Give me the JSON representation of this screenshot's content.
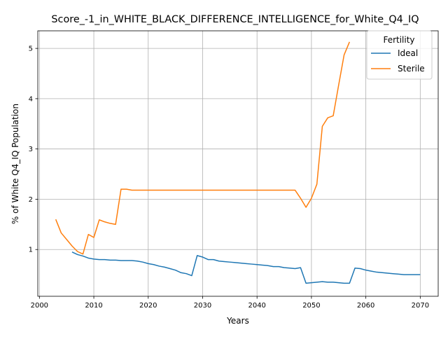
{
  "chart_data": {
    "type": "line",
    "title": "Score_-1_in_WHITE_BLACK_DIFFERENCE_INTELLIGENCE_for_White_Q4_IQ",
    "xlabel": "Years",
    "ylabel": "% of White Q4_IQ Population",
    "xlim": [
      1999.7,
      2073.3
    ],
    "ylim": [
      0.07,
      5.35
    ],
    "xticks": [
      2000,
      2010,
      2020,
      2030,
      2040,
      2050,
      2060,
      2070
    ],
    "yticks": [
      1,
      2,
      3,
      4,
      5
    ],
    "grid": true,
    "legend": {
      "title": "Fertility",
      "position": "upper right"
    },
    "series": [
      {
        "name": "Ideal",
        "color": "#1f77b4",
        "x": [
          2006,
          2007,
          2008,
          2009,
          2010,
          2011,
          2012,
          2013,
          2014,
          2015,
          2016,
          2017,
          2018,
          2019,
          2020,
          2021,
          2022,
          2023,
          2024,
          2025,
          2026,
          2027,
          2028,
          2029,
          2030,
          2031,
          2032,
          2033,
          2034,
          2035,
          2036,
          2037,
          2038,
          2039,
          2040,
          2041,
          2042,
          2043,
          2044,
          2045,
          2046,
          2047,
          2048,
          2049,
          2050,
          2051,
          2052,
          2053,
          2054,
          2055,
          2056,
          2057,
          2058,
          2059,
          2060,
          2061,
          2062,
          2063,
          2064,
          2065,
          2066,
          2067,
          2068,
          2069,
          2070
        ],
        "y": [
          0.95,
          0.9,
          0.87,
          0.83,
          0.81,
          0.8,
          0.8,
          0.79,
          0.79,
          0.78,
          0.78,
          0.78,
          0.77,
          0.75,
          0.72,
          0.7,
          0.67,
          0.65,
          0.62,
          0.59,
          0.54,
          0.52,
          0.48,
          0.88,
          0.85,
          0.8,
          0.8,
          0.77,
          0.76,
          0.75,
          0.74,
          0.73,
          0.72,
          0.71,
          0.7,
          0.69,
          0.68,
          0.66,
          0.66,
          0.64,
          0.63,
          0.62,
          0.64,
          0.33,
          0.34,
          0.35,
          0.36,
          0.35,
          0.35,
          0.34,
          0.33,
          0.33,
          0.63,
          0.62,
          0.59,
          0.57,
          0.55,
          0.54,
          0.53,
          0.52,
          0.51,
          0.5,
          0.5,
          0.5,
          0.5
        ]
      },
      {
        "name": "Sterile",
        "color": "#ff7f0e",
        "x": [
          2003,
          2004,
          2005,
          2006,
          2007,
          2008,
          2009,
          2010,
          2011,
          2012,
          2013,
          2014,
          2015,
          2016,
          2017,
          2018,
          2019,
          2020,
          2021,
          2022,
          2023,
          2024,
          2025,
          2026,
          2027,
          2028,
          2029,
          2030,
          2031,
          2032,
          2033,
          2034,
          2035,
          2036,
          2037,
          2038,
          2039,
          2040,
          2041,
          2042,
          2043,
          2044,
          2045,
          2046,
          2047,
          2048,
          2049,
          2050,
          2051,
          2052,
          2053,
          2054,
          2055,
          2056,
          2057
        ],
        "y": [
          1.6,
          1.33,
          1.2,
          1.07,
          0.96,
          0.91,
          1.3,
          1.24,
          1.59,
          1.55,
          1.52,
          1.5,
          2.2,
          2.2,
          2.18,
          2.18,
          2.18,
          2.18,
          2.18,
          2.18,
          2.18,
          2.18,
          2.18,
          2.18,
          2.18,
          2.18,
          2.18,
          2.18,
          2.18,
          2.18,
          2.18,
          2.18,
          2.18,
          2.18,
          2.18,
          2.18,
          2.18,
          2.18,
          2.18,
          2.18,
          2.18,
          2.18,
          2.18,
          2.18,
          2.18,
          2.02,
          1.84,
          2.02,
          2.3,
          3.45,
          3.62,
          3.66,
          4.27,
          4.87,
          5.13
        ]
      }
    ]
  }
}
